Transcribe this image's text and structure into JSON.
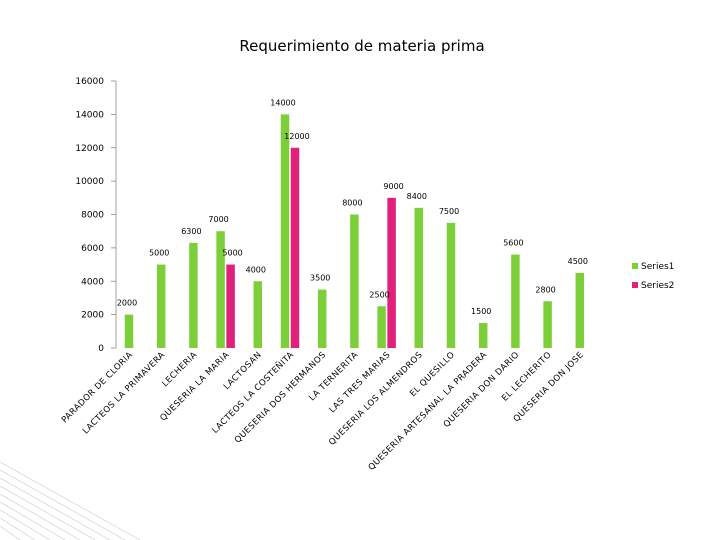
{
  "chart_data": {
    "type": "bar",
    "title": "Requerimiento de materia prima",
    "ylim": [
      0,
      16000
    ],
    "yticks": [
      0,
      2000,
      4000,
      6000,
      8000,
      10000,
      12000,
      14000,
      16000
    ],
    "grid": false,
    "legend_position": "right",
    "categories": [
      "PARADOR DE CLORIA",
      "LACTEOS LA PRIMAVERA",
      "LECHERIA",
      "QUESERIA LA MARIA",
      "LACTOSAN",
      "LACTEOS LA COSTEÑITA",
      "QUESERIA DOS HERMANOS",
      "LA TERNERITA",
      "LAS TRES MARIAS",
      "QUESERIA LOS ALMENDROS",
      "EL QUESILLO",
      "QUESERIA ARTESANAL LA PRADERA",
      "QUESERIA DON DARIO",
      "EL LECHERITO",
      "QUESERIA DON JOSE"
    ],
    "series": [
      {
        "name": "Series1",
        "color": "#7dcf3a",
        "values": [
          2000,
          5000,
          6300,
          7000,
          4000,
          14000,
          3500,
          8000,
          2500,
          8400,
          7500,
          1500,
          5600,
          2800,
          4500
        ]
      },
      {
        "name": "Series2",
        "color": "#e0207a",
        "values": [
          null,
          null,
          null,
          5000,
          null,
          12000,
          null,
          null,
          9000,
          null,
          null,
          null,
          null,
          null,
          null
        ]
      }
    ]
  }
}
